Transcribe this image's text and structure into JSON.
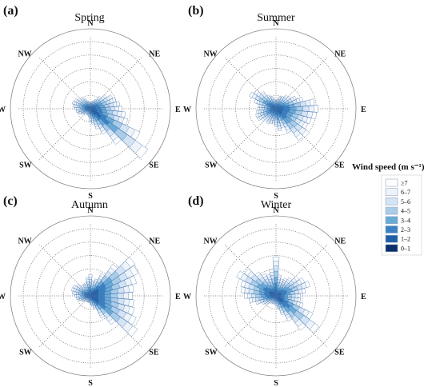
{
  "chart_data": [
    {
      "type": "wind-rose",
      "panel_label": "(a)",
      "title": "Spring",
      "directions": [
        "N",
        "NW",
        "NE",
        "W",
        "E",
        "SW",
        "SE",
        "S"
      ],
      "sectors": [
        {
          "dir": 0,
          "r": 0.08
        },
        {
          "dir": 10,
          "r": 0.1
        },
        {
          "dir": 20,
          "r": 0.12
        },
        {
          "dir": 30,
          "r": 0.15
        },
        {
          "dir": 40,
          "r": 0.22
        },
        {
          "dir": 50,
          "r": 0.28
        },
        {
          "dir": 60,
          "r": 0.35
        },
        {
          "dir": 70,
          "r": 0.38
        },
        {
          "dir": 80,
          "r": 0.42
        },
        {
          "dir": 90,
          "r": 0.45
        },
        {
          "dir": 100,
          "r": 0.5
        },
        {
          "dir": 110,
          "r": 0.55
        },
        {
          "dir": 120,
          "r": 0.78
        },
        {
          "dir": 130,
          "r": 1.0
        },
        {
          "dir": 140,
          "r": 0.62
        },
        {
          "dir": 150,
          "r": 0.4
        },
        {
          "dir": 160,
          "r": 0.3
        },
        {
          "dir": 170,
          "r": 0.22
        },
        {
          "dir": 180,
          "r": 0.18
        },
        {
          "dir": 190,
          "r": 0.12
        },
        {
          "dir": 200,
          "r": 0.1
        },
        {
          "dir": 210,
          "r": 0.1
        },
        {
          "dir": 220,
          "r": 0.1
        },
        {
          "dir": 230,
          "r": 0.12
        },
        {
          "dir": 240,
          "r": 0.15
        },
        {
          "dir": 250,
          "r": 0.18
        },
        {
          "dir": 260,
          "r": 0.2
        },
        {
          "dir": 270,
          "r": 0.22
        },
        {
          "dir": 280,
          "r": 0.25
        },
        {
          "dir": 290,
          "r": 0.27
        },
        {
          "dir": 300,
          "r": 0.25
        },
        {
          "dir": 310,
          "r": 0.22
        },
        {
          "dir": 320,
          "r": 0.2
        },
        {
          "dir": 330,
          "r": 0.16
        },
        {
          "dir": 340,
          "r": 0.12
        },
        {
          "dir": 350,
          "r": 0.1
        }
      ]
    },
    {
      "type": "wind-rose",
      "panel_label": "(b)",
      "title": "Summer",
      "directions": [
        "N",
        "NW",
        "NE",
        "W",
        "E",
        "SW",
        "SE",
        "S"
      ],
      "sectors": [
        {
          "dir": 0,
          "r": 0.12
        },
        {
          "dir": 10,
          "r": 0.14
        },
        {
          "dir": 20,
          "r": 0.18
        },
        {
          "dir": 30,
          "r": 0.2
        },
        {
          "dir": 40,
          "r": 0.24
        },
        {
          "dir": 50,
          "r": 0.26
        },
        {
          "dir": 60,
          "r": 0.32
        },
        {
          "dir": 70,
          "r": 0.4
        },
        {
          "dir": 80,
          "r": 0.55
        },
        {
          "dir": 90,
          "r": 0.6
        },
        {
          "dir": 100,
          "r": 0.58
        },
        {
          "dir": 110,
          "r": 0.52
        },
        {
          "dir": 120,
          "r": 0.5
        },
        {
          "dir": 130,
          "r": 0.58
        },
        {
          "dir": 140,
          "r": 0.55
        },
        {
          "dir": 150,
          "r": 0.38
        },
        {
          "dir": 160,
          "r": 0.28
        },
        {
          "dir": 170,
          "r": 0.32
        },
        {
          "dir": 180,
          "r": 0.25
        },
        {
          "dir": 190,
          "r": 0.22
        },
        {
          "dir": 200,
          "r": 0.22
        },
        {
          "dir": 210,
          "r": 0.24
        },
        {
          "dir": 220,
          "r": 0.22
        },
        {
          "dir": 230,
          "r": 0.25
        },
        {
          "dir": 240,
          "r": 0.3
        },
        {
          "dir": 250,
          "r": 0.3
        },
        {
          "dir": 260,
          "r": 0.28
        },
        {
          "dir": 270,
          "r": 0.26
        },
        {
          "dir": 280,
          "r": 0.26
        },
        {
          "dir": 290,
          "r": 0.32
        },
        {
          "dir": 300,
          "r": 0.42
        },
        {
          "dir": 310,
          "r": 0.38
        },
        {
          "dir": 320,
          "r": 0.3
        },
        {
          "dir": 330,
          "r": 0.22
        },
        {
          "dir": 340,
          "r": 0.18
        },
        {
          "dir": 350,
          "r": 0.14
        }
      ]
    },
    {
      "type": "wind-rose",
      "panel_label": "(c)",
      "title": "Autumn",
      "directions": [
        "N",
        "NW",
        "NE",
        "W",
        "E",
        "SW",
        "SE",
        "S"
      ],
      "sectors": [
        {
          "dir": 0,
          "r": 0.3
        },
        {
          "dir": 10,
          "r": 0.22
        },
        {
          "dir": 20,
          "r": 0.25
        },
        {
          "dir": 30,
          "r": 0.35
        },
        {
          "dir": 40,
          "r": 0.55
        },
        {
          "dir": 50,
          "r": 0.78
        },
        {
          "dir": 60,
          "r": 0.75
        },
        {
          "dir": 70,
          "r": 0.68
        },
        {
          "dir": 80,
          "r": 0.62
        },
        {
          "dir": 90,
          "r": 0.6
        },
        {
          "dir": 100,
          "r": 0.62
        },
        {
          "dir": 110,
          "r": 0.65
        },
        {
          "dir": 120,
          "r": 0.72
        },
        {
          "dir": 130,
          "r": 0.82
        },
        {
          "dir": 140,
          "r": 0.5
        },
        {
          "dir": 150,
          "r": 0.35
        },
        {
          "dir": 160,
          "r": 0.2
        },
        {
          "dir": 170,
          "r": 0.15
        },
        {
          "dir": 180,
          "r": 0.12
        },
        {
          "dir": 190,
          "r": 0.1
        },
        {
          "dir": 200,
          "r": 0.1
        },
        {
          "dir": 210,
          "r": 0.1
        },
        {
          "dir": 220,
          "r": 0.1
        },
        {
          "dir": 230,
          "r": 0.12
        },
        {
          "dir": 240,
          "r": 0.14
        },
        {
          "dir": 250,
          "r": 0.18
        },
        {
          "dir": 260,
          "r": 0.2
        },
        {
          "dir": 270,
          "r": 0.22
        },
        {
          "dir": 280,
          "r": 0.26
        },
        {
          "dir": 290,
          "r": 0.28
        },
        {
          "dir": 300,
          "r": 0.28
        },
        {
          "dir": 310,
          "r": 0.24
        },
        {
          "dir": 320,
          "r": 0.2
        },
        {
          "dir": 330,
          "r": 0.18
        },
        {
          "dir": 340,
          "r": 0.2
        },
        {
          "dir": 350,
          "r": 0.26
        }
      ]
    },
    {
      "type": "wind-rose",
      "panel_label": "(d)",
      "title": "Winter",
      "directions": [
        "N",
        "NW",
        "NE",
        "W",
        "E",
        "SW",
        "SE",
        "S"
      ],
      "sectors": [
        {
          "dir": 0,
          "r": 0.55
        },
        {
          "dir": 10,
          "r": 0.3
        },
        {
          "dir": 20,
          "r": 0.25
        },
        {
          "dir": 30,
          "r": 0.28
        },
        {
          "dir": 40,
          "r": 0.32
        },
        {
          "dir": 50,
          "r": 0.4
        },
        {
          "dir": 60,
          "r": 0.45
        },
        {
          "dir": 70,
          "r": 0.5
        },
        {
          "dir": 80,
          "r": 0.42
        },
        {
          "dir": 90,
          "r": 0.35
        },
        {
          "dir": 100,
          "r": 0.35
        },
        {
          "dir": 110,
          "r": 0.4
        },
        {
          "dir": 120,
          "r": 0.58
        },
        {
          "dir": 130,
          "r": 0.75
        },
        {
          "dir": 140,
          "r": 0.6
        },
        {
          "dir": 150,
          "r": 0.4
        },
        {
          "dir": 160,
          "r": 0.28
        },
        {
          "dir": 170,
          "r": 0.18
        },
        {
          "dir": 180,
          "r": 0.14
        },
        {
          "dir": 190,
          "r": 0.12
        },
        {
          "dir": 200,
          "r": 0.12
        },
        {
          "dir": 210,
          "r": 0.12
        },
        {
          "dir": 220,
          "r": 0.14
        },
        {
          "dir": 230,
          "r": 0.18
        },
        {
          "dir": 240,
          "r": 0.22
        },
        {
          "dir": 250,
          "r": 0.3
        },
        {
          "dir": 260,
          "r": 0.38
        },
        {
          "dir": 270,
          "r": 0.45
        },
        {
          "dir": 280,
          "r": 0.5
        },
        {
          "dir": 290,
          "r": 0.52
        },
        {
          "dir": 300,
          "r": 0.62
        },
        {
          "dir": 310,
          "r": 0.55
        },
        {
          "dir": 320,
          "r": 0.42
        },
        {
          "dir": 330,
          "r": 0.35
        },
        {
          "dir": 340,
          "r": 0.32
        },
        {
          "dir": 350,
          "r": 0.38
        }
      ]
    }
  ],
  "legend": {
    "title": "Wind speed (m s⁻¹)",
    "bins": [
      {
        "label": "≥7",
        "color": "#ffffff"
      },
      {
        "label": "6–7",
        "color": "#eef3fa"
      },
      {
        "label": "5–6",
        "color": "#d4e4f4"
      },
      {
        "label": "4–5",
        "color": "#a9cce8"
      },
      {
        "label": "3–4",
        "color": "#6aaad7"
      },
      {
        "label": "2–3",
        "color": "#3b82c4"
      },
      {
        "label": "1–2",
        "color": "#1f5fa8"
      },
      {
        "label": "0–1",
        "color": "#0b2f6b"
      }
    ]
  },
  "colors": {
    "rose_edge": "#3c6ea8",
    "grid": "#777777"
  }
}
